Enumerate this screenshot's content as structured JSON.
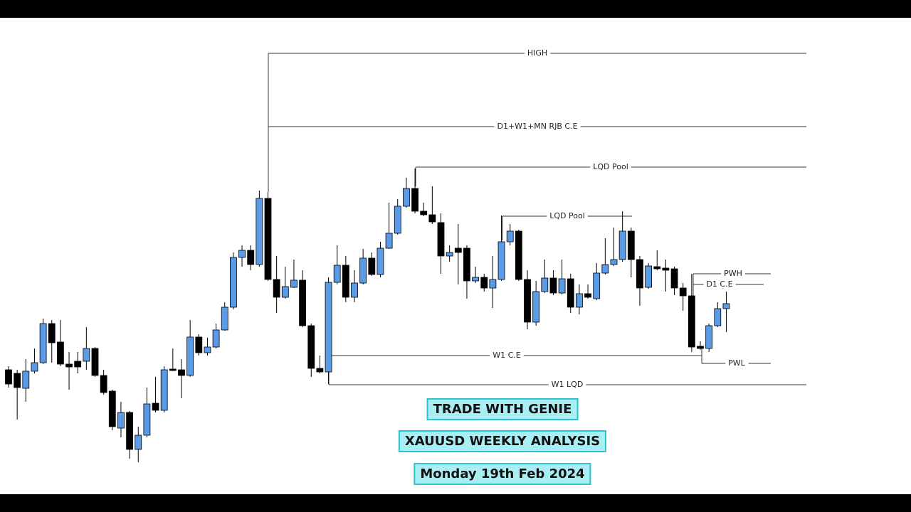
{
  "chart_data": {
    "type": "candlestick",
    "colors": {
      "up": "#5b9ae6",
      "down": "#000000"
    },
    "ylim": [
      25,
      695
    ],
    "open": [
      200,
      195,
      174,
      198,
      210,
      265,
      239,
      208,
      212,
      212,
      230,
      192,
      170,
      118,
      140,
      88,
      108,
      153,
      143,
      201,
      200,
      192,
      246,
      224,
      232,
      256,
      288,
      358,
      368,
      348,
      441,
      327,
      302,
      316,
      326,
      262,
      202,
      197,
      323,
      347,
      302,
      322,
      357,
      334,
      371,
      392,
      430,
      455,
      423,
      418,
      407,
      360,
      371,
      371,
      325,
      330,
      315,
      327,
      380,
      395,
      327,
      267,
      310,
      329,
      308,
      328,
      288,
      307,
      300,
      336,
      348,
      355,
      395,
      355,
      316,
      345,
      343,
      342,
      315,
      304,
      233,
      230,
      262,
      286
    ],
    "high": [
      205,
      200,
      215,
      230,
      272,
      270,
      270,
      225,
      225,
      260,
      232,
      200,
      172,
      155,
      142,
      120,
      175,
      190,
      205,
      230,
      215,
      270,
      250,
      245,
      265,
      295,
      365,
      375,
      375,
      452,
      450,
      360,
      345,
      355,
      340,
      265,
      220,
      330,
      375,
      360,
      340,
      370,
      365,
      380,
      435,
      440,
      470,
      483,
      435,
      458,
      420,
      375,
      405,
      375,
      345,
      335,
      360,
      417,
      405,
      397,
      340,
      325,
      355,
      340,
      355,
      335,
      320,
      320,
      350,
      385,
      400,
      423,
      400,
      360,
      350,
      368,
      355,
      345,
      322,
      335,
      240,
      265,
      295,
      310
    ],
    "low": [
      175,
      130,
      155,
      195,
      208,
      210,
      205,
      172,
      195,
      200,
      190,
      165,
      115,
      105,
      75,
      70,
      105,
      140,
      140,
      198,
      160,
      190,
      220,
      220,
      230,
      255,
      285,
      345,
      340,
      345,
      325,
      280,
      300,
      315,
      260,
      190,
      195,
      180,
      320,
      295,
      295,
      320,
      332,
      330,
      370,
      390,
      428,
      420,
      416,
      405,
      335,
      352,
      320,
      300,
      322,
      310,
      287,
      325,
      375,
      325,
      257,
      262,
      308,
      305,
      306,
      280,
      278,
      300,
      298,
      334,
      346,
      352,
      330,
      290,
      314,
      340,
      310,
      305,
      283,
      225,
      228,
      225,
      260,
      253
    ],
    "close": [
      180,
      175,
      198,
      210,
      265,
      238,
      208,
      204,
      204,
      230,
      192,
      168,
      120,
      140,
      88,
      108,
      152,
      143,
      200,
      199,
      192,
      246,
      224,
      232,
      256,
      288,
      358,
      368,
      348,
      441,
      327,
      302,
      317,
      326,
      262,
      202,
      197,
      323,
      347,
      302,
      322,
      357,
      334,
      371,
      392,
      430,
      455,
      423,
      418,
      408,
      360,
      365,
      365,
      325,
      330,
      315,
      327,
      380,
      395,
      327,
      267,
      310,
      329,
      308,
      328,
      288,
      307,
      302,
      336,
      348,
      355,
      395,
      355,
      315,
      346,
      342,
      340,
      315,
      304,
      232,
      230,
      262,
      286,
      293
    ],
    "levels": [
      {
        "label": "HIGH",
        "value": 645
      },
      {
        "label": "D1+W1+MN RJB C.E",
        "value": 542
      },
      {
        "label": "LQD Pool",
        "value": 485
      },
      {
        "label": "LQD Pool",
        "value": 416
      },
      {
        "label": "PWH",
        "value": 335
      },
      {
        "label": "D1 C.E",
        "value": 320
      },
      {
        "label": "W1 C.E",
        "value": 220
      },
      {
        "label": "PWL",
        "value": 209
      },
      {
        "label": "W1 LQD",
        "value": 179
      }
    ]
  },
  "banners": [
    "TRADE WITH GENIE",
    "XAUUSD WEEKLY ANALYSIS",
    "Monday 19th Feb 2024"
  ]
}
